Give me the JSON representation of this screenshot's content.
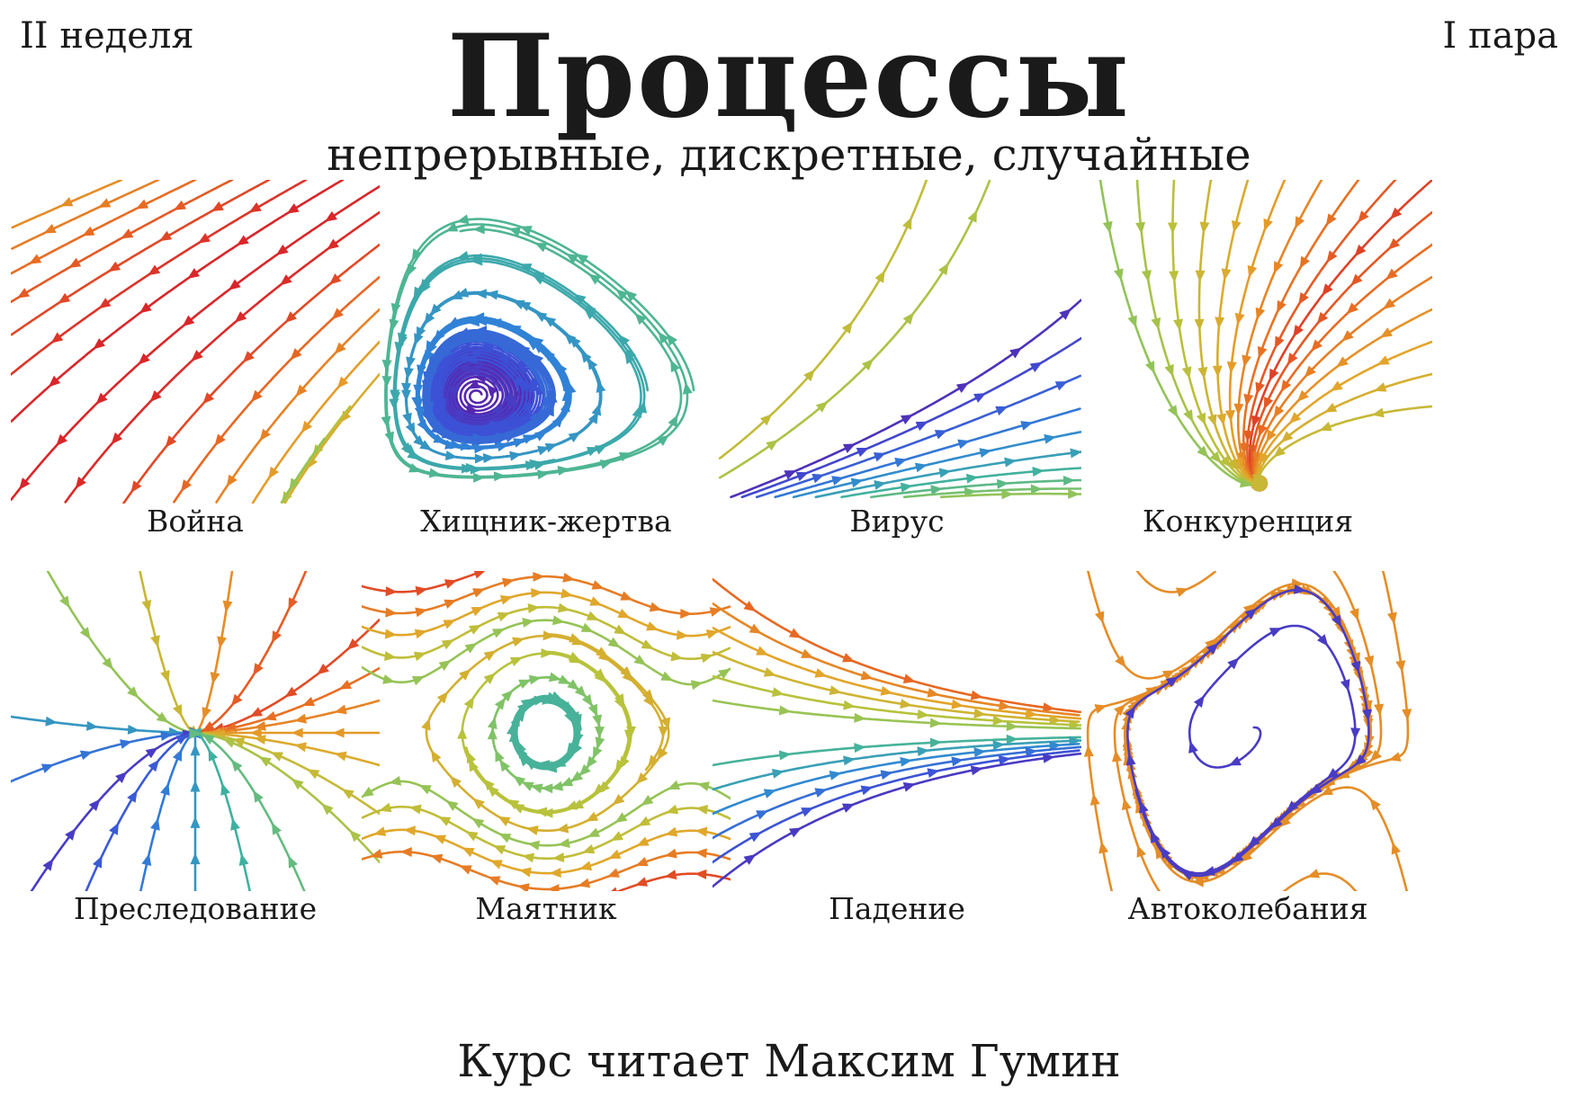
{
  "header": {
    "week": "II неделя",
    "pair": "I пара",
    "title": "Процессы",
    "subtitle": "непрерывные, дискретные, случайные"
  },
  "panels": [
    {
      "id": "war",
      "caption": "Война",
      "icon": "linear-flow-field"
    },
    {
      "id": "predator-prey",
      "caption": "Хищник-жертва",
      "icon": "closed-orbits-field"
    },
    {
      "id": "virus",
      "caption": "Вирус",
      "icon": "epidemic-flow-field"
    },
    {
      "id": "competition",
      "caption": "Конкуренция",
      "icon": "saddle-flow-field"
    },
    {
      "id": "pursuit",
      "caption": "Преследование",
      "icon": "sink-node-field"
    },
    {
      "id": "pendulum",
      "caption": "Маятник",
      "icon": "pendulum-phase-field"
    },
    {
      "id": "fall",
      "caption": "Падение",
      "icon": "falling-body-field"
    },
    {
      "id": "self-oscillation",
      "caption": "Автоколебания",
      "icon": "limit-cycle-field"
    }
  ],
  "footer": {
    "lecturer": "Курс читает Максим Гумин"
  },
  "colors": {
    "palette": [
      "#5a1fa8",
      "#3d4fd6",
      "#2f86d6",
      "#3fb0a0",
      "#7cc36a",
      "#b8c23c",
      "#e3a52a",
      "#e86a22",
      "#d9262a"
    ],
    "text": "#1a1a1a",
    "background": "#ffffff"
  }
}
